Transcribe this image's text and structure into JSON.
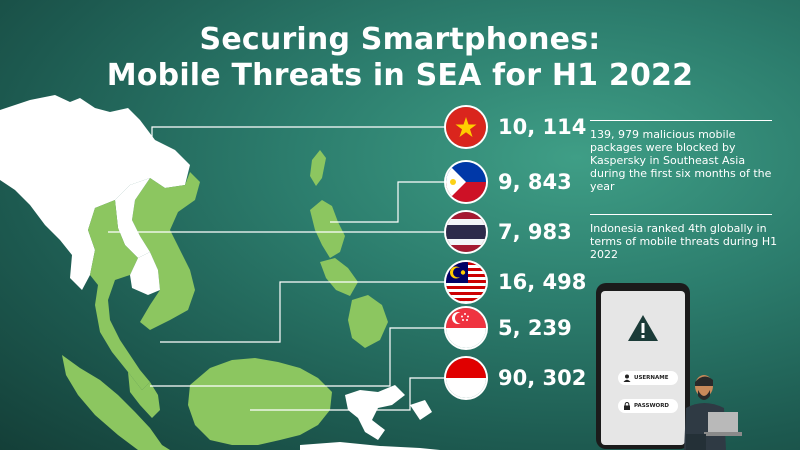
{
  "title": {
    "line1": "Securing Smartphones:",
    "line2": "Mobile Threats in SEA for H1 2022"
  },
  "countries": [
    {
      "flag": "vietnam-flag-icon",
      "count": "10, 114"
    },
    {
      "flag": "philippines-flag-icon",
      "count": "9, 843"
    },
    {
      "flag": "thailand-flag-icon",
      "count": "7, 983"
    },
    {
      "flag": "malaysia-flag-icon",
      "count": "16, 498"
    },
    {
      "flag": "singapore-flag-icon",
      "count": "5, 239"
    },
    {
      "flag": "indonesia-flag-icon",
      "count": "90, 302"
    }
  ],
  "notes": [
    "139, 979 malicious mobile packages were blocked by Kaspersky in Southeast Asia during the first six months of the year",
    "Indonesia ranked 4th globally in terms of mobile threats during H1 2022"
  ],
  "phone": {
    "username_label": "USERNAME",
    "password_label": "PASSWORD",
    "icon": "warning-triangle-icon"
  },
  "colors": {
    "land_highlight": "#8cc660",
    "land_other": "#ffffff",
    "background": "#2c7d6d",
    "text": "#ffffff"
  }
}
